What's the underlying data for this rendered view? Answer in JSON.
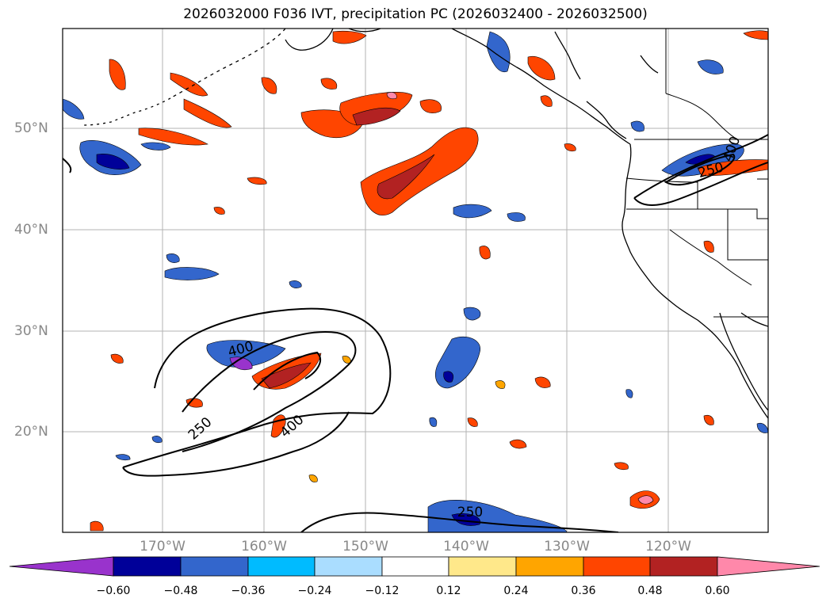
{
  "title": "2026032000 F036 IVT, precipitation PC (2026032400 - 2026032500)",
  "lat_labels": [
    "50°N",
    "40°N",
    "30°N",
    "20°N"
  ],
  "lon_labels": [
    "170°W",
    "160°W",
    "150°W",
    "140°W",
    "130°W",
    "120°W"
  ],
  "contour_labels": [
    "250",
    "400",
    "250",
    "400",
    "250",
    "250",
    "400"
  ],
  "colorbar": {
    "colors": [
      "#9933cc",
      "#000099",
      "#3366cc",
      "#00bbff",
      "#aaddff",
      "#ffffff",
      "#ffe88a",
      "#ffa500",
      "#ff4500",
      "#b22222",
      "#ff88aa"
    ],
    "tick_labels": [
      "−0.60",
      "−0.48",
      "−0.36",
      "−0.24",
      "−0.12",
      "0.12",
      "0.24",
      "0.36",
      "0.48",
      "0.60"
    ]
  },
  "colors": {
    "gridline": "#b3b3b3",
    "coast": "#000000",
    "ivt_contour": "#000000"
  }
}
